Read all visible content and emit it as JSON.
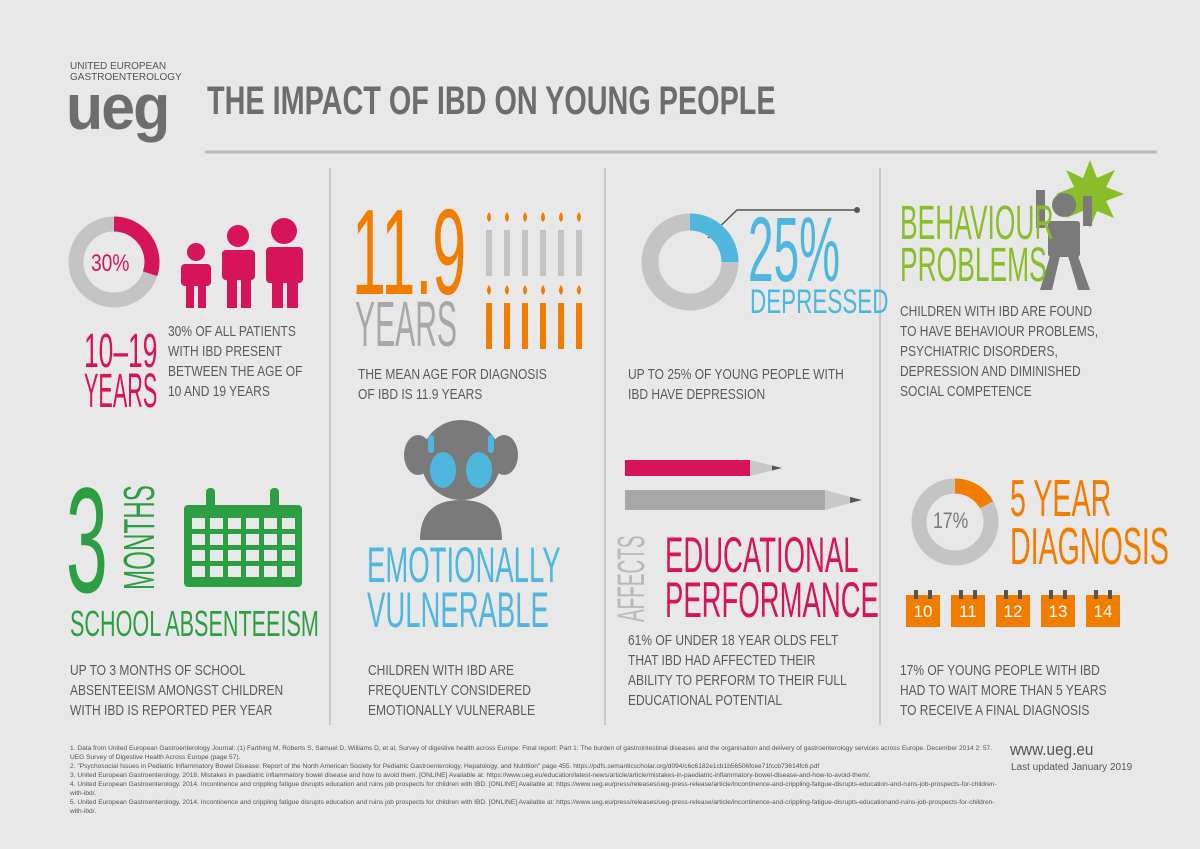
{
  "header": {
    "org": [
      "UNITED EUROPEAN",
      "GASTROENTEROLOGY"
    ],
    "logo": "ueg",
    "title": "THE IMPACT OF IBD ON YOUNG PEOPLE"
  },
  "panels": [
    {
      "donut": {
        "value": 30,
        "label": "30%"
      },
      "range": "10–19",
      "unit": "YEARS",
      "text": [
        "30% OF ALL PATIENTS",
        "WITH IBD PRESENT",
        "BETWEEN THE AGE OF",
        "10 AND 19 YEARS"
      ]
    },
    {
      "number": 11.9,
      "unit": "YEARS",
      "text": [
        "THE MEAN AGE FOR DIAGNOSIS",
        "OF IBD IS 11.9 YEARS"
      ]
    },
    {
      "donut": {
        "value": 25,
        "label": "25%"
      },
      "caption": "DEPRESSED",
      "text": [
        "UP TO 25% OF YOUNG PEOPLE WITH",
        "IBD HAVE DEPRESSION"
      ]
    },
    {
      "heading": [
        "BEHAVIOUR",
        "PROBLEMS"
      ],
      "text": [
        "CHILDREN WITH IBD ARE FOUND",
        "TO HAVE BEHAVIOUR PROBLEMS,",
        "PSYCHIATRIC DISORDERS,",
        "DEPRESSION AND DIMINISHED",
        "SOCIAL COMPETENCE"
      ]
    },
    {
      "number": 3,
      "unit": "MONTHS",
      "heading": "SCHOOL ABSENTEEISM",
      "text": [
        "UP TO 3 MONTHS OF SCHOOL",
        "ABSENTEEISM AMONGST CHILDREN",
        "WITH IBD IS REPORTED PER YEAR"
      ]
    },
    {
      "heading": [
        "EMOTIONALLY",
        "VULNERABLE"
      ],
      "text": [
        "CHILDREN WITH IBD ARE",
        "FREQUENTLY CONSIDERED",
        "EMOTIONALLY VULNERABLE"
      ]
    },
    {
      "side": "AFFECTS",
      "heading": [
        "EDUCATIONAL",
        "PERFORMANCE"
      ],
      "text": [
        "61% OF UNDER 18 YEAR OLDS FELT",
        "THAT IBD HAD AFFECTED THEIR",
        "ABILITY TO PERFORM TO THEIR FULL",
        "EDUCATIONAL POTENTIAL"
      ]
    },
    {
      "donut": {
        "value": 17,
        "label": "17%"
      },
      "heading": [
        "5 YEAR",
        "DIAGNOSIS"
      ],
      "years": [
        10,
        11,
        12,
        13,
        14
      ],
      "text": [
        "17% OF YOUNG PEOPLE WITH IBD",
        "HAD TO WAIT MORE THAN 5 YEARS",
        "TO RECEIVE A FINAL DIAGNOSIS"
      ]
    }
  ],
  "footnotes": [
    "1. Data from United European Gastroenterology Journal: (1) Farthing M, Roberts S, Samuel D, Williams D, et al, Survey of digestive health across Europe: Final report: Part 1: The burden of gastrointestinal diseases and the organisation and delivery of gastroenterology services across Europe. December 2014 2: 57. UEG Survey of Digestive Health Across Europe (page 57).",
    "2. \"Psychosocial Issues in Pediatric Inflammatory Bowel Disease: Report of the North American Society for Pediatric Gastroenterology, Hepatology, and Nutrition\" page 455. https://pdfs.semanticscholar.org/d094/c6c6182e1cb1b56506fcee71fccb73614fc6.pdf",
    "3. United European Gastroenterology. 2018. Mistakes in paediatric inflammatory bowel disease and how to avoid them. [ONLINE] Available at: https://www.ueg.eu/education/latest-news/article/article/mistakes-in-paediatric-inflammatory-bowel-disease-and-how-to-avoid-them/.",
    "4. United European Gastroenterology. 2014. Incontinence and crippling fatigue disrupts education and ruins job prospects for children with IBD. [ONLINE] Available at: https://www.ueg.eu/press/releases/ueg-press-release/article/incontinence-and-crippling-fatigue-disrupts-education-and-ruins-job-prospects-for-children-with-ibd/.",
    "5. United European Gastroenterology. 2014. Incontinence and crippling fatigue disrupts education and ruins job prospects for children with IBD. [ONLINE] Available at: https://www.ueg.eu/press/releases/ueg-press-release/article/incontinence-and-crippling-fatigue-disrupts-educationand-ruins-job-prospects-for-children-with-ibd/."
  ],
  "website": "www.ueg.eu",
  "updated": "Last updated January 2019"
}
